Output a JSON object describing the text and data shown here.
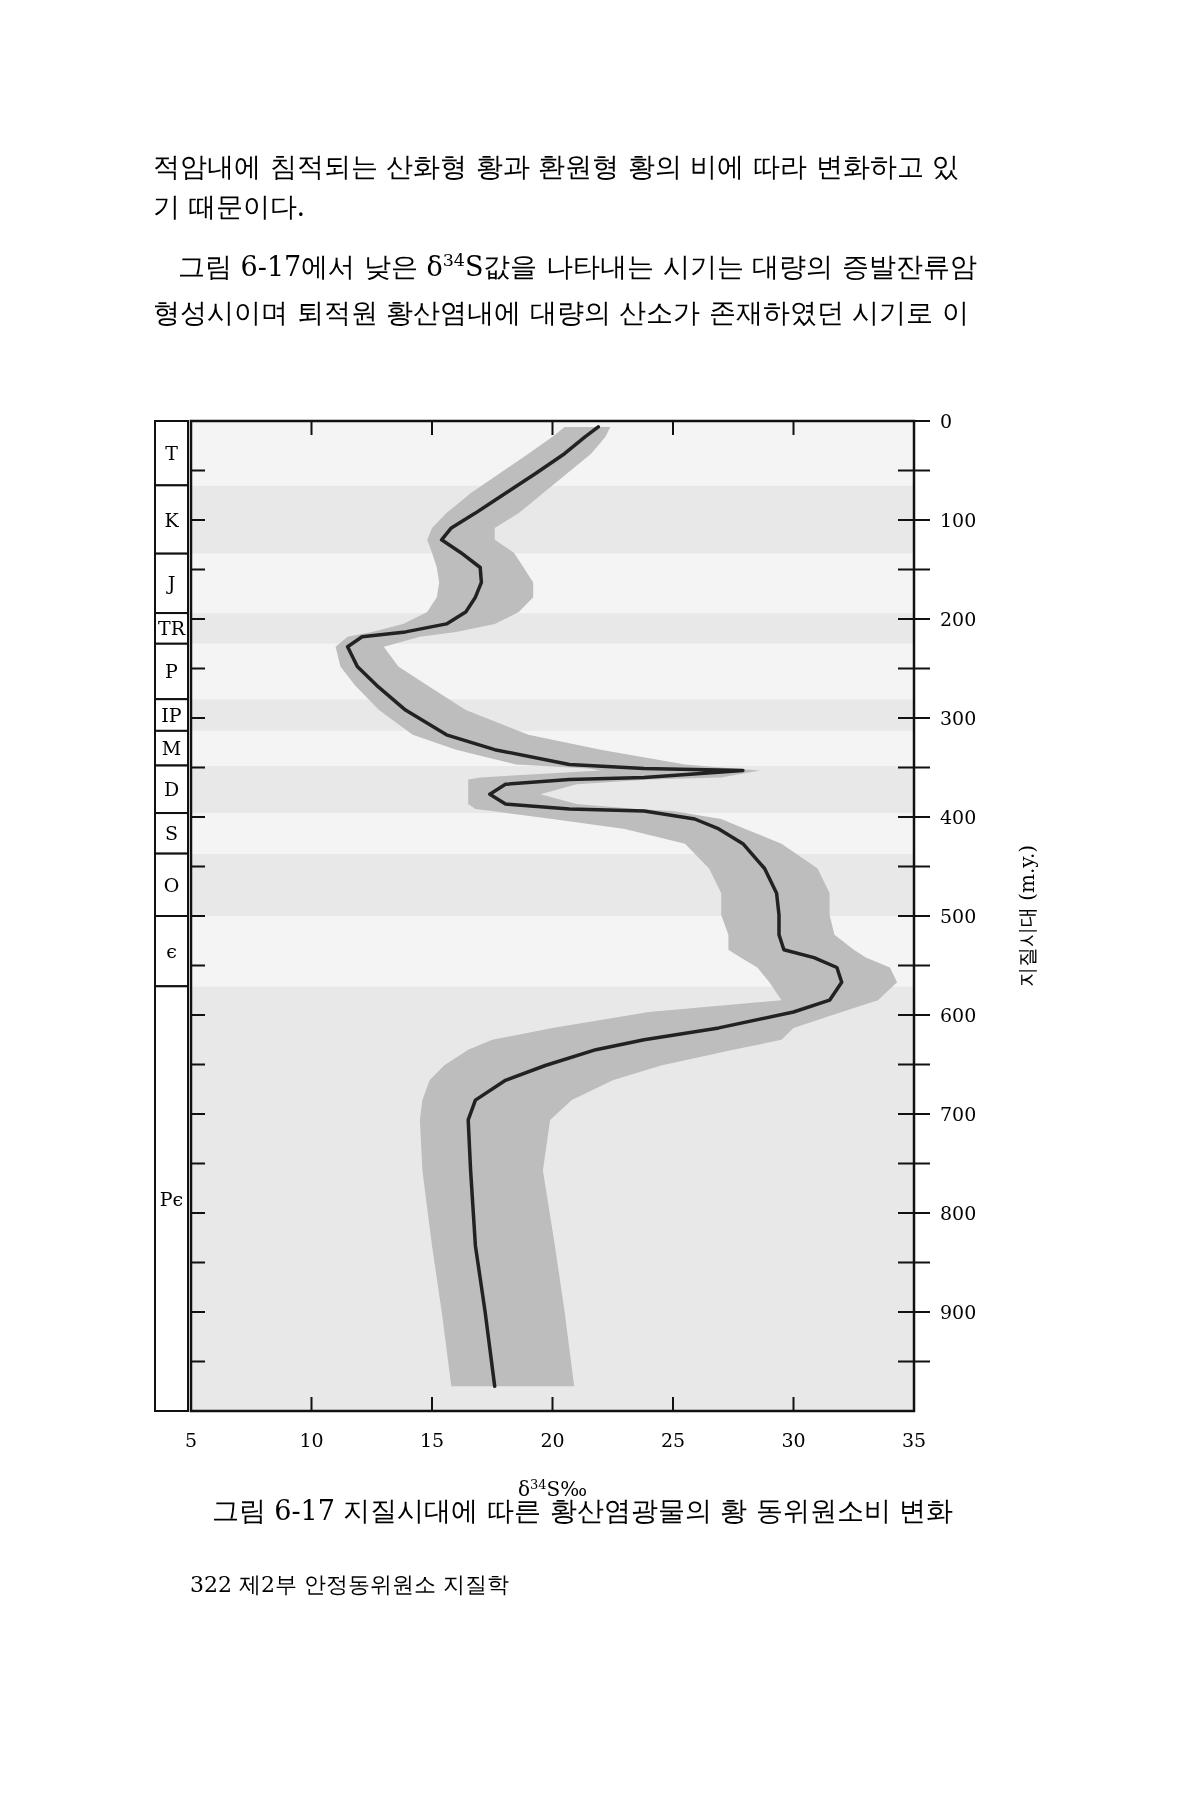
{
  "chart_data": {
    "type": "line",
    "orientation": "horizontal",
    "title": "그림 6-17 지질시대에 따른 황산염광물의 황 동위원소비 변화",
    "xlabel": "δ$^{34}$S‰",
    "ylabel": "지질시대 (m.y.)",
    "xlim": [
      5,
      35
    ],
    "xticks": [
      5,
      10,
      15,
      20,
      25,
      30,
      35
    ],
    "ylim": [
      1000,
      0
    ],
    "yticks": [
      0,
      {
        "value": 50,
        "label": null
      },
      100,
      {
        "value": 150,
        "label": null
      },
      200,
      {
        "value": 250,
        "label": null
      },
      300,
      {
        "value": 350,
        "label": null
      },
      400,
      {
        "value": 450,
        "label": null
      },
      500,
      {
        "value": 550,
        "label": null
      },
      600,
      {
        "value": 650,
        "label": null
      },
      700,
      {
        "value": 750,
        "label": null
      },
      800,
      {
        "value": 850,
        "label": null
      },
      900,
      {
        "value": 950,
        "label": null
      }
    ],
    "grid": false,
    "series": [
      {
        "color": "#222222",
        "line_style": "solid",
        "marker": "none",
        "x": [
          6,
          16,
          33,
          53,
          73,
          93,
          108,
          120,
          133,
          148,
          163,
          178,
          193,
          205,
          213,
          218,
          228,
          248,
          267,
          292,
          317,
          332,
          347,
          351,
          353,
          360,
          362,
          367,
          377,
          387,
          392,
          394,
          402,
          412,
          427,
          452,
          477,
          499,
          519,
          534,
          542,
          552,
          567,
          585,
          597,
          613,
          625,
          635,
          651,
          666,
          686,
          706,
          757,
          833,
          899,
          975
        ],
        "values": [
          21.9,
          21.35,
          20.5,
          19.3,
          18.05,
          16.8,
          15.8,
          15.4,
          16.2,
          17.0,
          17.05,
          16.8,
          16.4,
          15.6,
          13.9,
          12.1,
          11.5,
          11.9,
          12.7,
          13.9,
          15.6,
          17.6,
          20.7,
          23.8,
          27.9,
          23.8,
          20.7,
          18.05,
          17.4,
          18.05,
          20.7,
          23.8,
          25.9,
          26.9,
          27.9,
          28.8,
          29.3,
          29.4,
          29.4,
          29.6,
          30.85,
          31.8,
          32.0,
          31.5,
          30.0,
          26.9,
          23.8,
          21.8,
          19.7,
          18.05,
          16.8,
          16.5,
          16.6,
          16.8,
          17.2,
          17.6
        ],
        "lower": [
          20.5,
          20.0,
          19.0,
          17.8,
          16.6,
          15.6,
          15.0,
          14.8,
          15.0,
          15.2,
          15.3,
          15.2,
          14.8,
          13.8,
          12.5,
          11.5,
          11.0,
          11.2,
          11.8,
          12.8,
          14.2,
          16.0,
          18.5,
          21.5,
          22.0,
          17.0,
          16.5,
          16.5,
          16.5,
          16.5,
          16.8,
          17.5,
          20.0,
          23.0,
          25.5,
          26.5,
          27.0,
          27.0,
          27.3,
          27.3,
          27.8,
          28.5,
          29.0,
          29.5,
          24.0,
          20.0,
          17.5,
          16.5,
          15.5,
          14.9,
          14.6,
          14.5,
          14.6,
          15.0,
          15.4,
          15.8
        ],
        "upper": [
          22.4,
          22.2,
          21.6,
          20.6,
          19.6,
          18.6,
          17.6,
          17.6,
          18.4,
          18.8,
          19.2,
          19.2,
          18.6,
          17.6,
          16.0,
          14.5,
          13.0,
          13.6,
          14.8,
          16.4,
          19.0,
          22.0,
          25.5,
          27.5,
          28.6,
          27.0,
          24.0,
          21.0,
          19.5,
          21.0,
          23.5,
          25.0,
          27.0,
          28.0,
          29.5,
          31.0,
          31.5,
          31.5,
          31.7,
          32.5,
          33.0,
          34.0,
          34.3,
          33.5,
          32.0,
          30.0,
          29.5,
          27.5,
          24.5,
          22.5,
          20.8,
          19.9,
          19.6,
          20.1,
          20.5,
          20.9
        ]
      }
    ],
    "bands": [
      {
        "axis": "y",
        "from": 0,
        "to": 65,
        "label": "T"
      },
      {
        "axis": "y",
        "from": 65,
        "to": 134,
        "label": "K"
      },
      {
        "axis": "y",
        "from": 134,
        "to": 194,
        "label": "J"
      },
      {
        "axis": "y",
        "from": 194,
        "to": 225,
        "label": "TR"
      },
      {
        "axis": "y",
        "from": 225,
        "to": 281,
        "label": "P"
      },
      {
        "axis": "y",
        "from": 281,
        "to": 313,
        "label": "IP"
      },
      {
        "axis": "y",
        "from": 313,
        "to": 348,
        "label": "M"
      },
      {
        "axis": "y",
        "from": 348,
        "to": 396,
        "label": "D"
      },
      {
        "axis": "y",
        "from": 396,
        "to": 437,
        "label": "S"
      },
      {
        "axis": "y",
        "from": 437,
        "to": 500,
        "label": "O"
      },
      {
        "axis": "y",
        "from": 500,
        "to": 571,
        "label": "ϵ"
      },
      {
        "axis": "y",
        "from": 571,
        "to": 1000,
        "label": "Pϵ"
      }
    ],
    "annotations": [
      "적암내에 침적되는 산화형 황과 환원형 황의 비에 따라 변화하고 있",
      "기 때문이다.",
      "그림 6-17에서 낮은 δ$^{34}$S값을 나타내는 시기는 대량의 증발잔류암",
      "형성시이며 퇴적원 황산염내에 대량의 산소가 존재하였던 시기로 이",
      "322 제2부 안정동위원소 지질학"
    ]
  }
}
